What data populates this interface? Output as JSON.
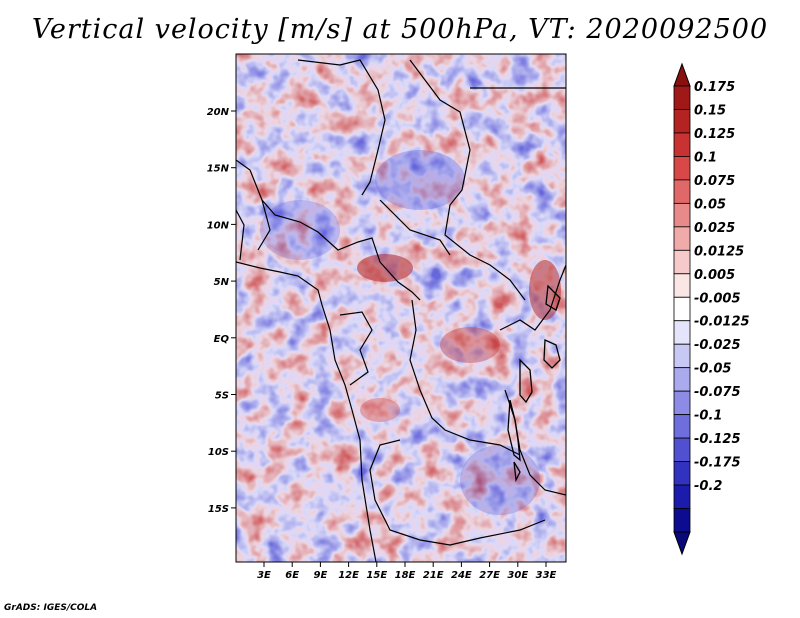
{
  "title": "Vertical velocity [m/s] at 500hPa, VT: 2020092500",
  "credit": "GrADS: IGES/COLA",
  "map": {
    "lon_ticks": [
      "3E",
      "6E",
      "9E",
      "12E",
      "15E",
      "18E",
      "21E",
      "24E",
      "27E",
      "30E",
      "33E"
    ],
    "lat_ticks": [
      "20N",
      "15N",
      "10N",
      "5N",
      "EQ",
      "5S",
      "10S",
      "15S"
    ]
  },
  "colorbar": {
    "labels": [
      "0.175",
      "0.15",
      "0.125",
      "0.1",
      "0.075",
      "0.05",
      "0.025",
      "0.0125",
      "0.005",
      "-0.005",
      "-0.0125",
      "-0.025",
      "-0.05",
      "-0.075",
      "-0.1",
      "-0.125",
      "-0.175",
      "-0.2"
    ],
    "colors": [
      "#a01818",
      "#b52222",
      "#c93232",
      "#d84848",
      "#e06868",
      "#e88a8a",
      "#f0aaaa",
      "#f6caca",
      "#fbe6e6",
      "#ffffff",
      "#e4e4fb",
      "#c8c8f4",
      "#aaaaee",
      "#8c8ce6",
      "#6e6edc",
      "#5050d0",
      "#3232c0",
      "#1c1cac",
      "#0c0c90"
    ],
    "extend_top_color": "#8a1010",
    "extend_bottom_color": "#08087a"
  }
}
